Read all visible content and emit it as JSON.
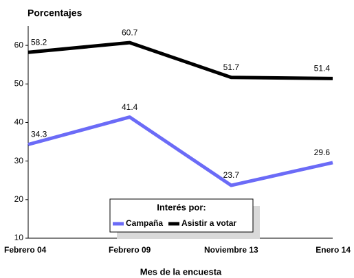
{
  "chart_data": {
    "type": "line",
    "title": "Porcentajes",
    "x_label": "Mes de la encuesta",
    "categories": [
      "Febrero 04",
      "Febrero 09",
      "Noviembre 13",
      "Enero 14"
    ],
    "series": [
      {
        "name": "Campaña",
        "color": "#6b6bf7",
        "values": [
          34.3,
          41.4,
          23.7,
          29.6
        ]
      },
      {
        "name": "Asistir a votar",
        "color": "#000000",
        "values": [
          58.2,
          60.7,
          51.7,
          51.4
        ]
      }
    ],
    "legend_title": "Interés por:",
    "ylim": [
      10,
      65
    ],
    "yticks": [
      10,
      20,
      30,
      40,
      50,
      60
    ],
    "grid": false
  }
}
